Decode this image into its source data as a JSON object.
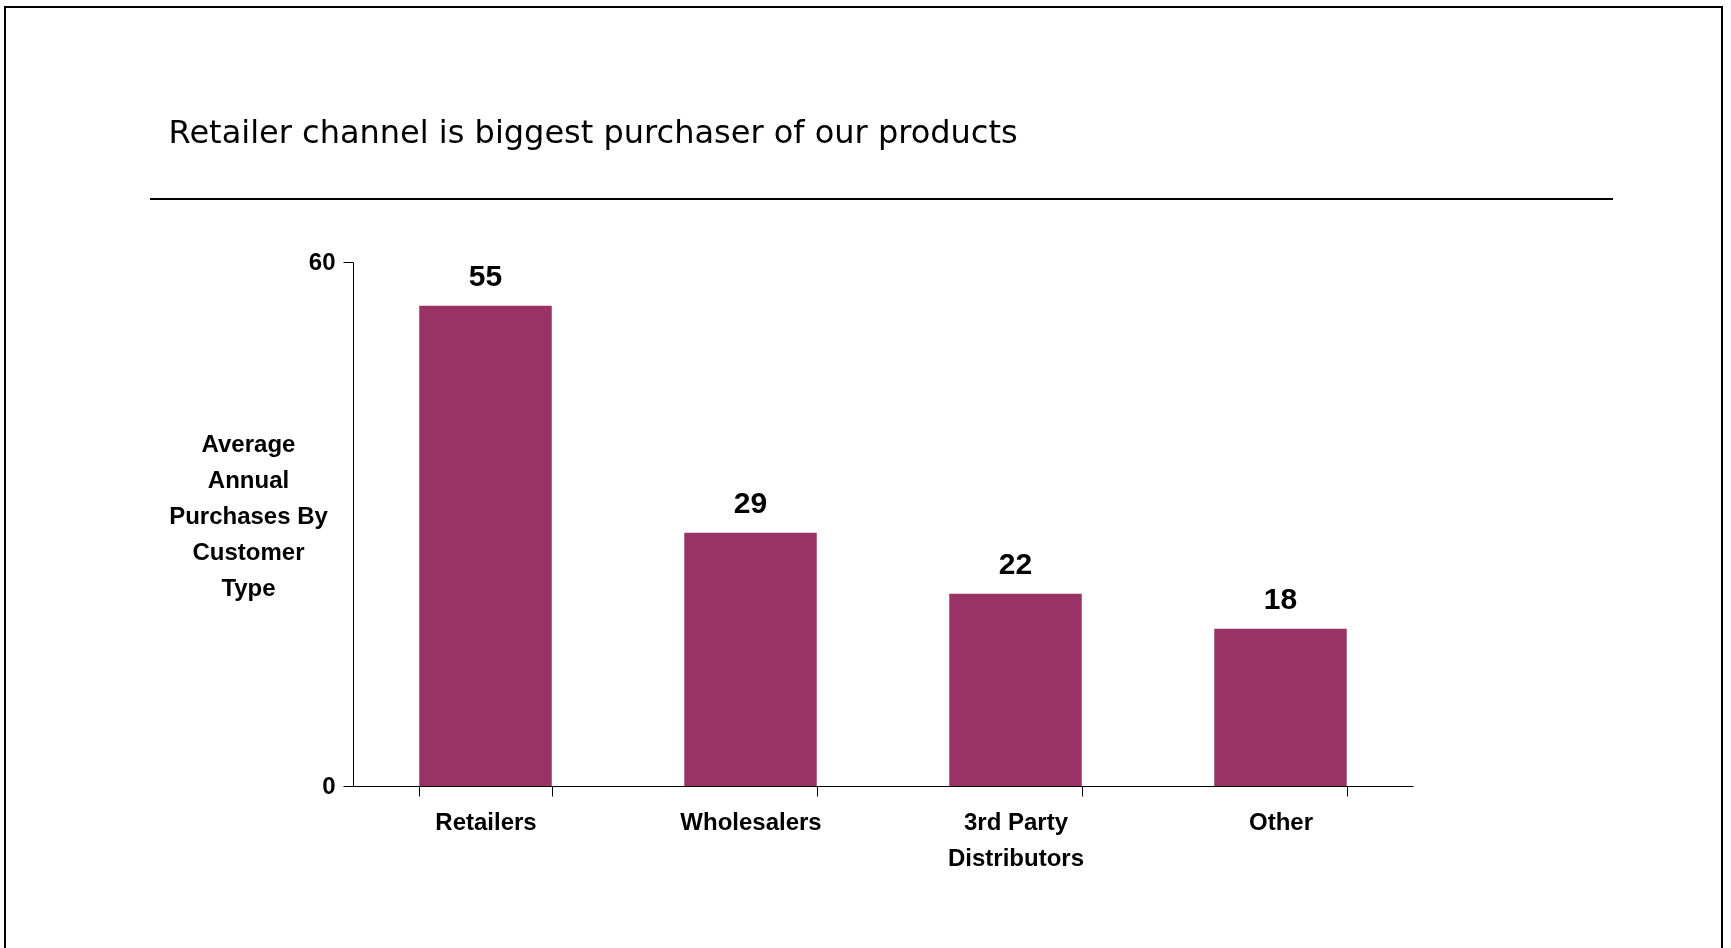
{
  "chart_data": {
    "type": "bar",
    "title": "Retailer channel is biggest purchaser of our products",
    "ylabel": "Average Annual Purchases By Customer Type",
    "categories": [
      "Retailers",
      "Wholesalers",
      "3rd Party Distributors",
      "Other"
    ],
    "values": [
      55,
      29,
      22,
      18
    ],
    "color": "#993366",
    "ylim": [
      0,
      60
    ],
    "yticks": [
      0,
      60
    ],
    "grid": false,
    "data_labels": true
  }
}
